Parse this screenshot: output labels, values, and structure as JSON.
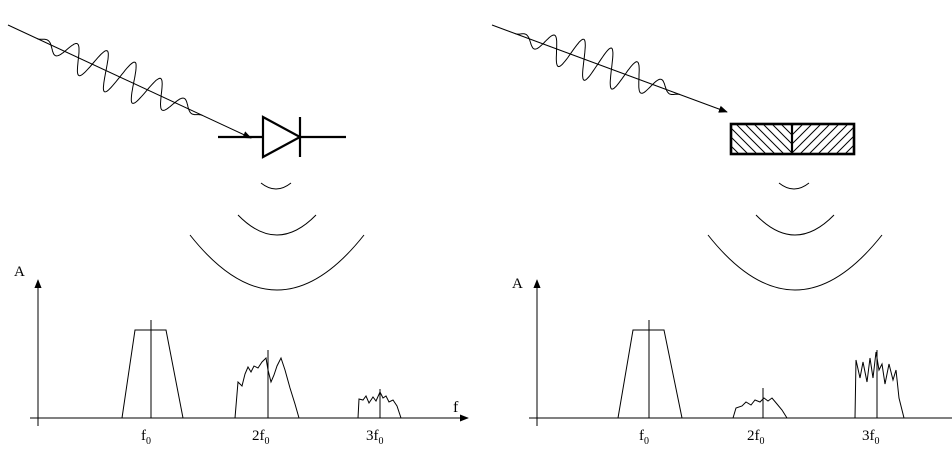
{
  "panels": [
    {
      "id": "diode",
      "axis_y_label": "A",
      "axis_x_label": "f",
      "ticks": [
        {
          "label": "f",
          "sub": "0"
        },
        {
          "label": "2f",
          "sub": "0"
        },
        {
          "label": "3f",
          "sub": "0"
        }
      ]
    },
    {
      "id": "block",
      "axis_y_label": "A",
      "axis_x_label": "",
      "ticks": [
        {
          "label": "f",
          "sub": "0"
        },
        {
          "label": "2f",
          "sub": "0"
        },
        {
          "label": "3f",
          "sub": "0"
        }
      ]
    }
  ],
  "colors": {
    "ink": "#000000",
    "background": "#ffffff"
  }
}
